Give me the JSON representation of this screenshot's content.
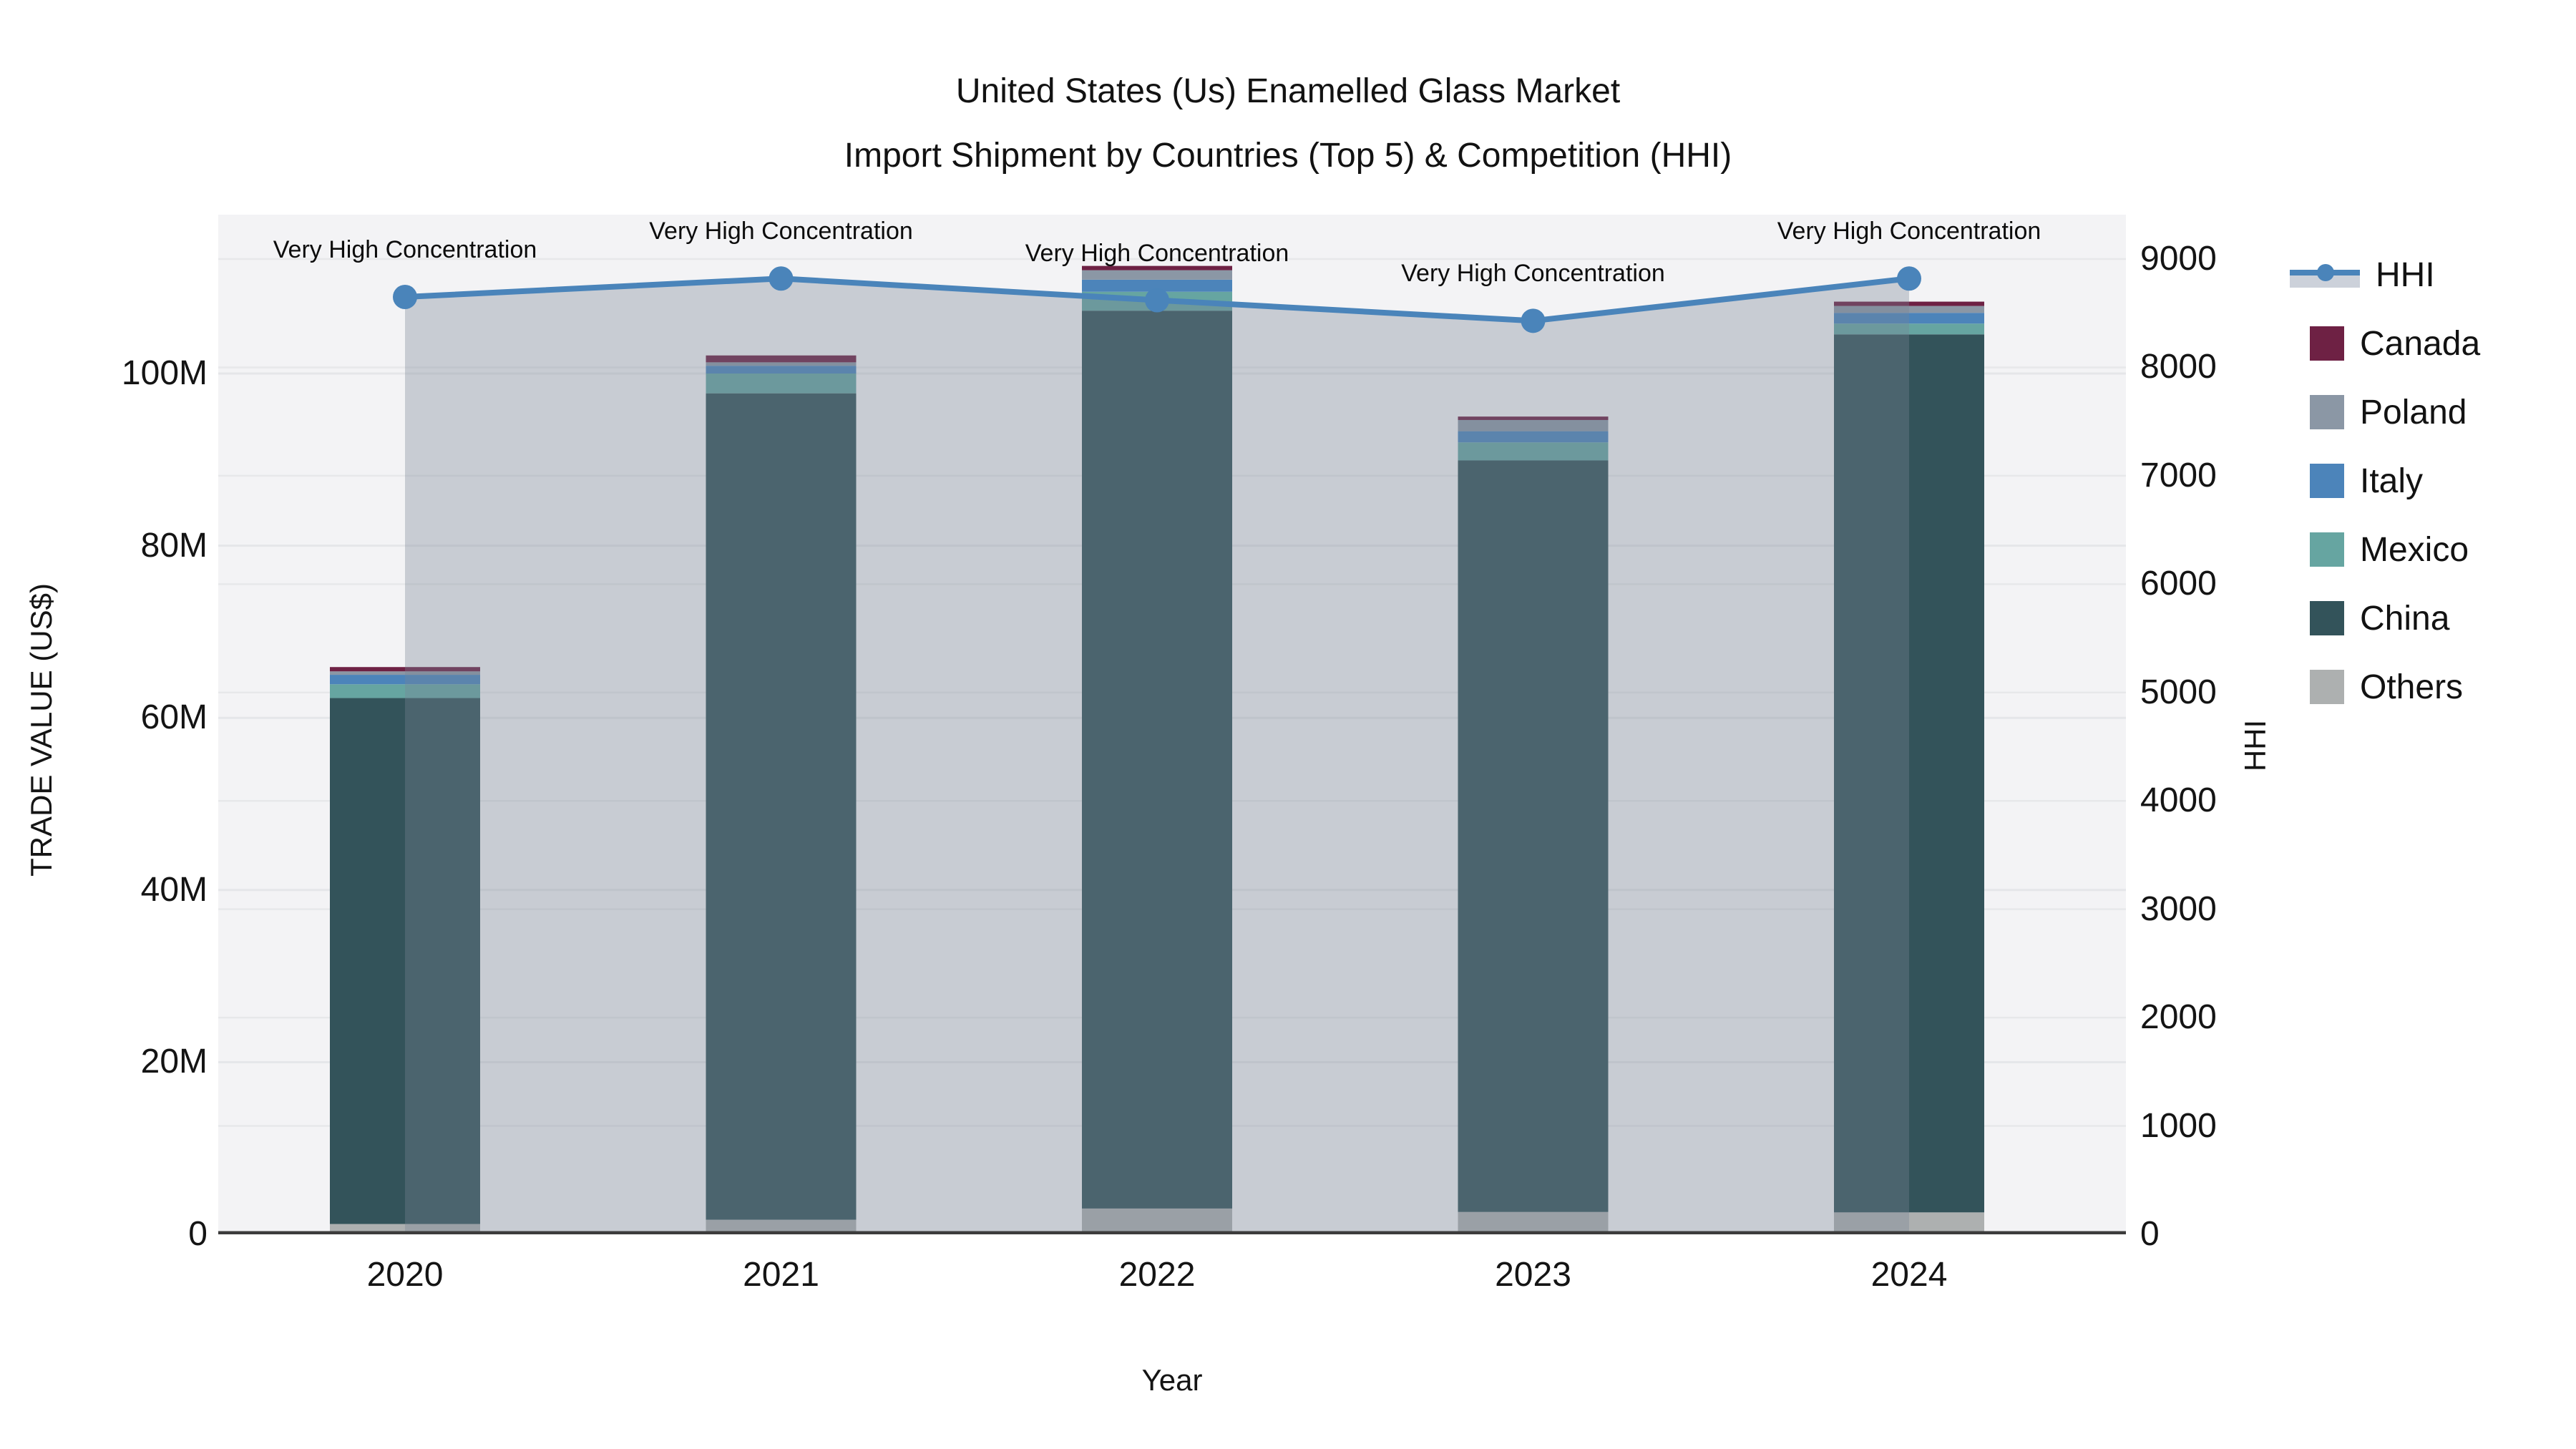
{
  "title": {
    "line1": "United States (Us) Enamelled Glass Market",
    "line2": "Import Shipment by Countries (Top 5) & Competition (HHI)"
  },
  "axes": {
    "left": {
      "title": "TRADE VALUE (US$)",
      "ticks": [
        "0",
        "20M",
        "40M",
        "60M",
        "80M",
        "100M"
      ]
    },
    "right": {
      "title": "HHI",
      "ticks": [
        "0",
        "1000",
        "2000",
        "3000",
        "4000",
        "5000",
        "6000",
        "7000",
        "8000",
        "9000"
      ]
    },
    "x": {
      "title": "Year",
      "ticks": [
        "2020",
        "2021",
        "2022",
        "2023",
        "2024"
      ]
    }
  },
  "legend": {
    "items": [
      {
        "label": "HHI",
        "type": "line",
        "color": "#4a84ba"
      },
      {
        "label": "Canada",
        "type": "square",
        "color": "#6e2144"
      },
      {
        "label": "Poland",
        "type": "square",
        "color": "#8b97a5"
      },
      {
        "label": "Italy",
        "type": "square",
        "color": "#4c84ba"
      },
      {
        "label": "Mexico",
        "type": "square",
        "color": "#66a5a1"
      },
      {
        "label": "China",
        "type": "square",
        "color": "#33535a"
      },
      {
        "label": "Others",
        "type": "square",
        "color": "#adb0b0"
      }
    ]
  },
  "annotations": [
    "Very High Concentration",
    "Very High Concentration",
    "Very High Concentration",
    "Very High Concentration",
    "Very High Concentration"
  ],
  "chart_data": {
    "type": "bar+line",
    "title": "United States (Us) Enamelled Glass Market Import Shipment by Countries (Top 5) & Competition (HHI)",
    "categories": [
      "2020",
      "2021",
      "2022",
      "2023",
      "2024"
    ],
    "stack_order_bottom_to_top": [
      "Others",
      "China",
      "Mexico",
      "Italy",
      "Poland",
      "Canada"
    ],
    "series": [
      {
        "name": "Others",
        "unit": "M US$",
        "color": "#adb0b0",
        "values": [
          1.2,
          1.7,
          3.0,
          2.6,
          2.55
        ]
      },
      {
        "name": "China",
        "unit": "M US$",
        "color": "#33535a",
        "values": [
          61.1,
          96.0,
          104.3,
          87.3,
          102.0
        ]
      },
      {
        "name": "Mexico",
        "unit": "M US$",
        "color": "#66a5a1",
        "values": [
          1.6,
          2.3,
          2.2,
          2.1,
          1.25
        ]
      },
      {
        "name": "Italy",
        "unit": "M US$",
        "color": "#4c84ba",
        "values": [
          1.1,
          0.9,
          1.4,
          1.3,
          1.25
        ]
      },
      {
        "name": "Poland",
        "unit": "M US$",
        "color": "#8b97a5",
        "values": [
          0.4,
          0.4,
          1.1,
          1.3,
          0.8
        ]
      },
      {
        "name": "Canada",
        "unit": "M US$",
        "color": "#6e2144",
        "values": [
          0.5,
          0.8,
          0.5,
          0.4,
          0.5
        ]
      }
    ],
    "bar_totals_musd": [
      65.9,
      102.1,
      112.5,
      95.0,
      108.35
    ],
    "hhi_line": {
      "name": "HHI",
      "color": "#4a84ba",
      "fill_color": "rgba(120,132,148,0.35)",
      "values": [
        8650,
        8820,
        8620,
        8430,
        8820
      ]
    },
    "xlabel": "Year",
    "ylabel_left": "TRADE VALUE (US$)",
    "ylabel_right": "HHI",
    "ylim_left_musd": [
      0,
      118.5
    ],
    "ylim_right": [
      0,
      9412
    ],
    "grid": true,
    "legend_position": "right"
  }
}
